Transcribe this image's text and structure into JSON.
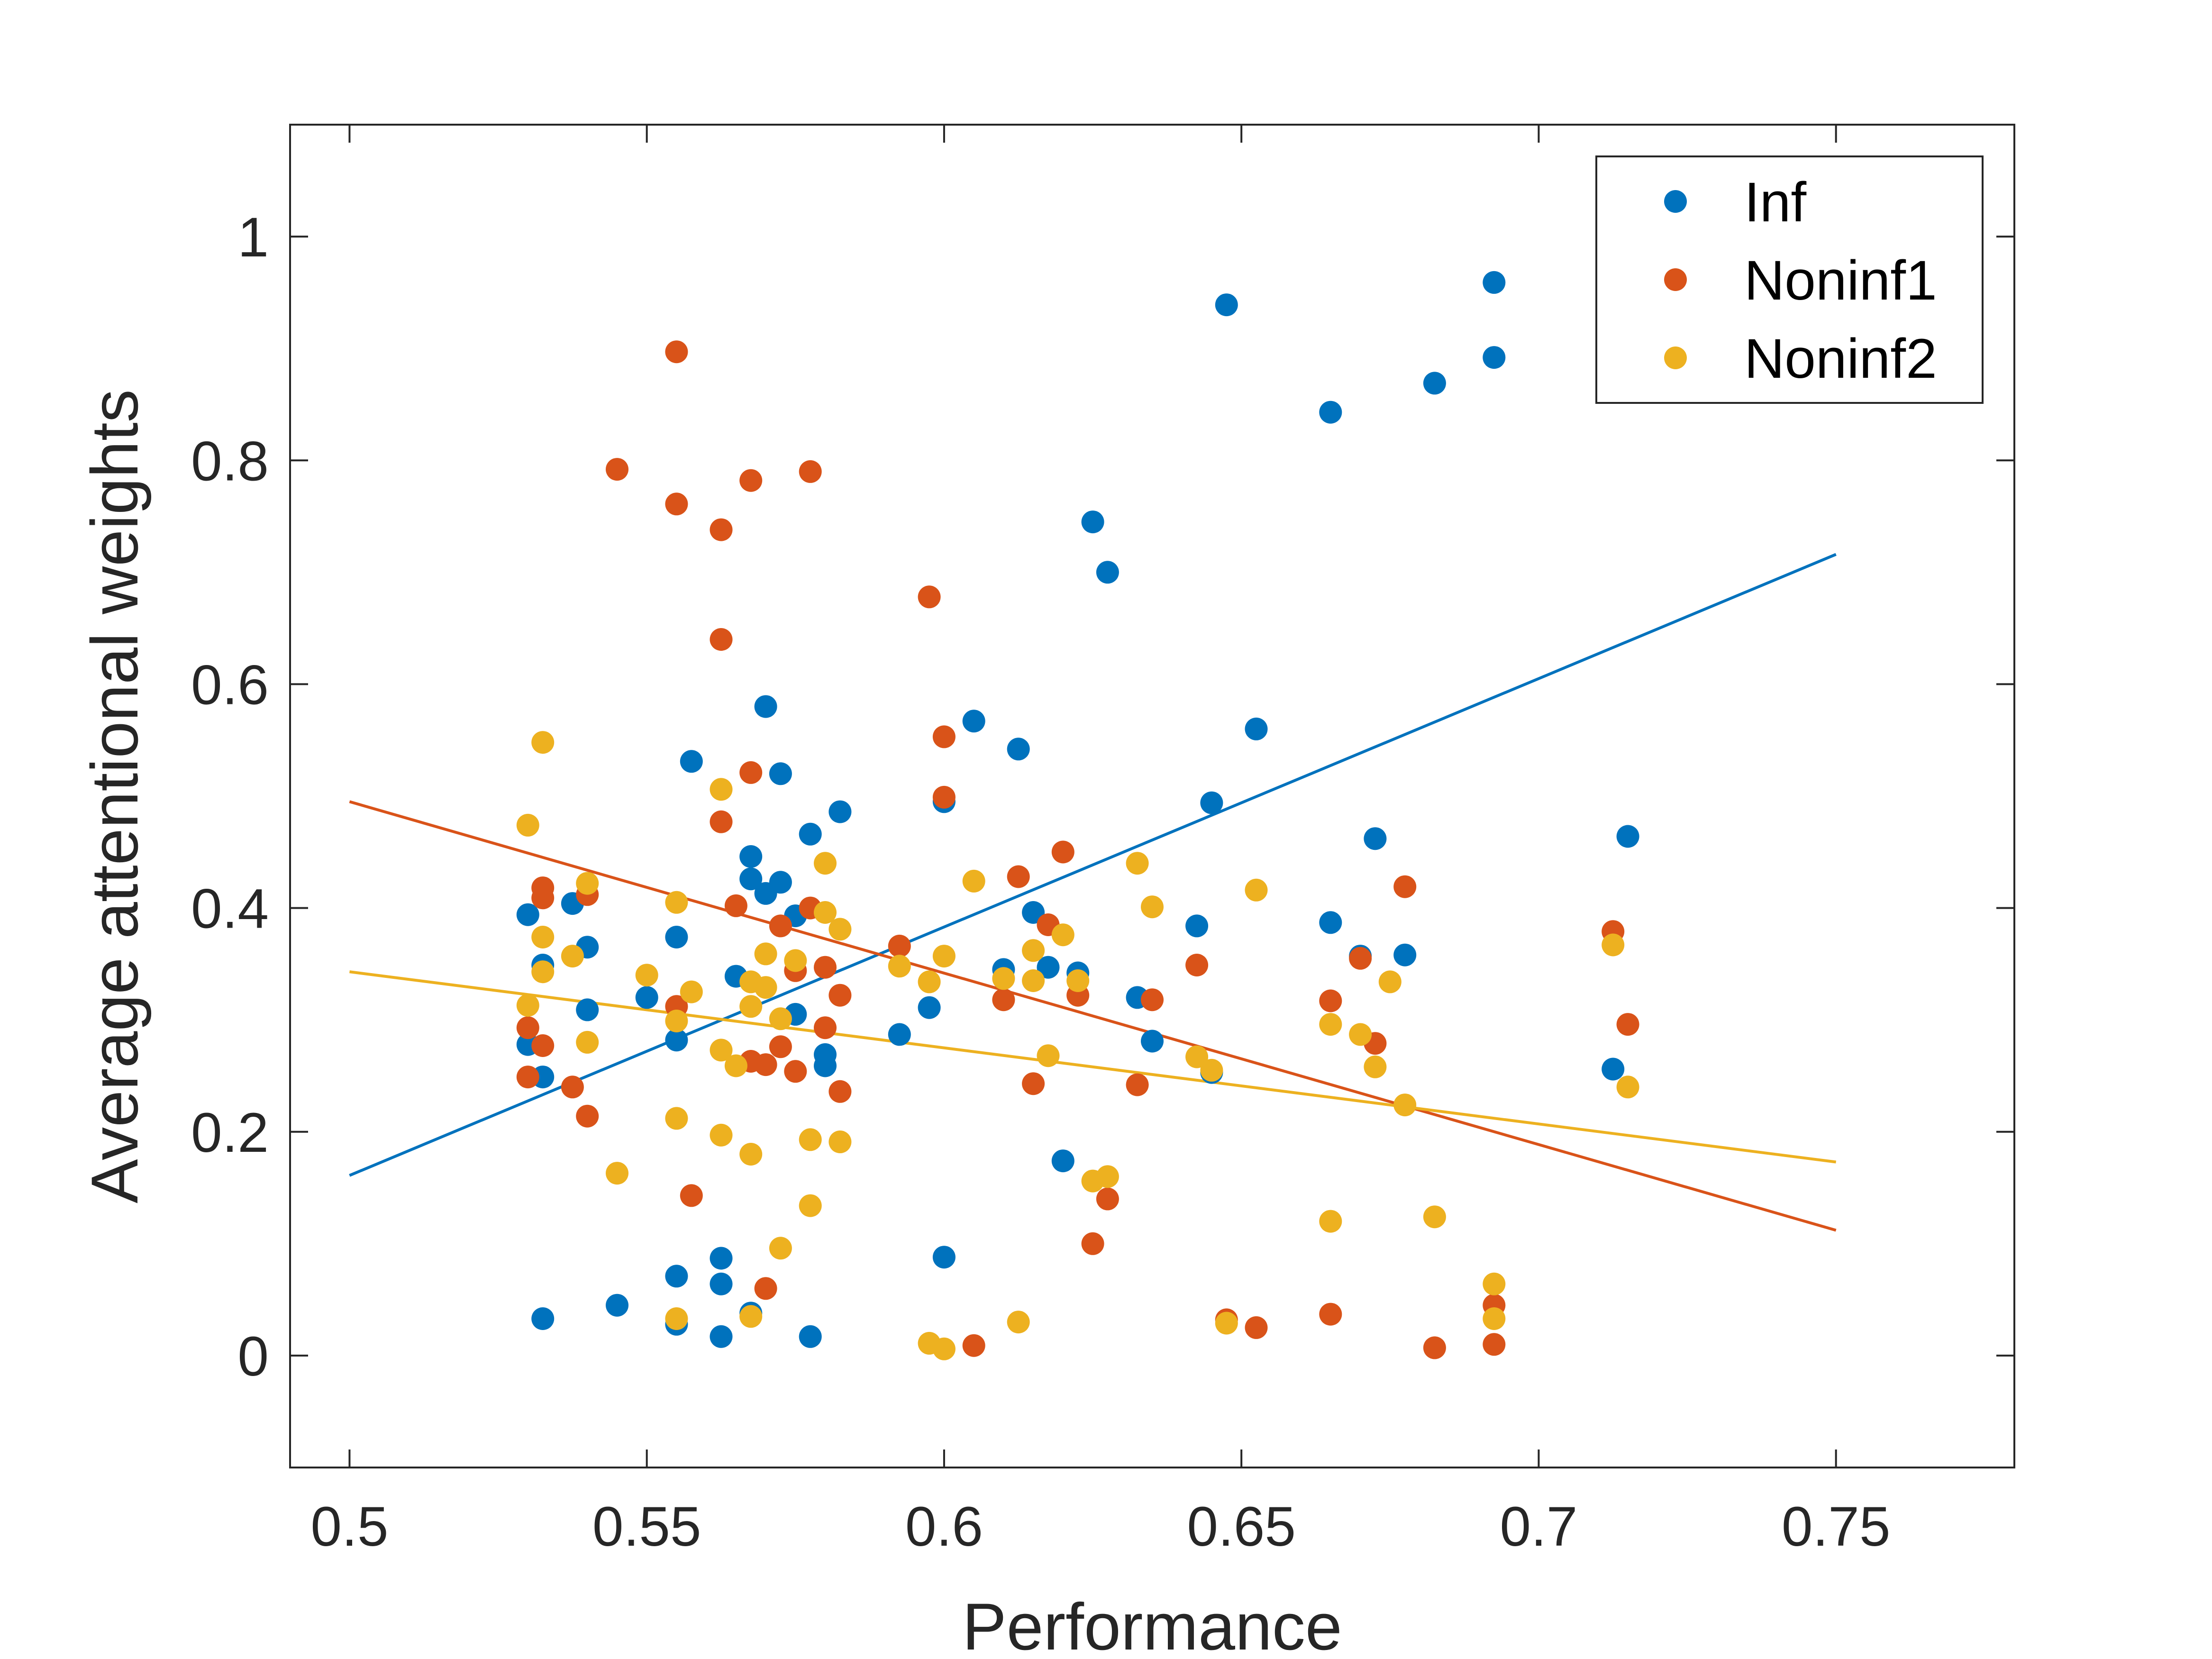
{
  "chart_data": {
    "type": "scatter",
    "xlabel": "Performance",
    "ylabel": "Average attentional weights",
    "xlim": [
      0.49,
      0.78
    ],
    "ylim": [
      -0.1,
      1.1
    ],
    "xticks": [
      "0.5",
      "0.55",
      "0.6",
      "0.65",
      "0.7",
      "0.75"
    ],
    "yticks": [
      "0",
      "0.2",
      "0.4",
      "0.6",
      "0.8",
      "1"
    ],
    "xtick_values": [
      0.5,
      0.55,
      0.6,
      0.65,
      0.7,
      0.75
    ],
    "ytick_values": [
      0,
      0.2,
      0.4,
      0.6,
      0.8,
      1
    ],
    "grid": false,
    "legend_position": "top-right",
    "series": [
      {
        "name": "Inf",
        "color": "#0072BD",
        "points": [
          [
            0.53,
            0.394
          ],
          [
            0.53,
            0.278
          ],
          [
            0.5325,
            0.349
          ],
          [
            0.5325,
            0.249
          ],
          [
            0.5325,
            0.033
          ],
          [
            0.5375,
            0.404
          ],
          [
            0.54,
            0.365
          ],
          [
            0.54,
            0.309
          ],
          [
            0.545,
            0.045
          ],
          [
            0.55,
            0.32
          ],
          [
            0.555,
            0.374
          ],
          [
            0.555,
            0.282
          ],
          [
            0.555,
            0.071
          ],
          [
            0.555,
            0.028
          ],
          [
            0.5575,
            0.531
          ],
          [
            0.5625,
            0.087
          ],
          [
            0.5625,
            0.064
          ],
          [
            0.5625,
            0.017
          ],
          [
            0.565,
            0.339
          ],
          [
            0.5675,
            0.446
          ],
          [
            0.5675,
            0.426
          ],
          [
            0.5675,
            0.038
          ],
          [
            0.57,
            0.58
          ],
          [
            0.57,
            0.413
          ],
          [
            0.5725,
            0.52
          ],
          [
            0.5725,
            0.423
          ],
          [
            0.575,
            0.393
          ],
          [
            0.575,
            0.305
          ],
          [
            0.5775,
            0.466
          ],
          [
            0.5775,
            0.017
          ],
          [
            0.58,
            0.269
          ],
          [
            0.58,
            0.259
          ],
          [
            0.5825,
            0.486
          ],
          [
            0.5925,
            0.287
          ],
          [
            0.5975,
            0.311
          ],
          [
            0.6,
            0.495
          ],
          [
            0.6,
            0.088
          ],
          [
            0.605,
            0.567
          ],
          [
            0.61,
            0.345
          ],
          [
            0.6125,
            0.542
          ],
          [
            0.615,
            0.396
          ],
          [
            0.6175,
            0.347
          ],
          [
            0.62,
            0.174
          ],
          [
            0.6225,
            0.342
          ],
          [
            0.625,
            0.745
          ],
          [
            0.6275,
            0.7
          ],
          [
            0.6325,
            0.32
          ],
          [
            0.635,
            0.281
          ],
          [
            0.6425,
            0.384
          ],
          [
            0.645,
            0.494
          ],
          [
            0.645,
            0.253
          ],
          [
            0.6475,
            0.939
          ],
          [
            0.6525,
            0.56
          ],
          [
            0.665,
            0.843
          ],
          [
            0.665,
            0.387
          ],
          [
            0.67,
            0.357
          ],
          [
            0.6725,
            0.462
          ],
          [
            0.6775,
            0.358
          ],
          [
            0.6825,
            0.869
          ],
          [
            0.6925,
            0.959
          ],
          [
            0.6925,
            0.892
          ],
          [
            0.7125,
            0.256
          ],
          [
            0.715,
            0.464
          ]
        ],
        "fit": {
          "x": [
            0.5,
            0.75
          ],
          "y": [
            0.161,
            0.716
          ]
        }
      },
      {
        "name": "Noninf1",
        "color": "#D95319",
        "points": [
          [
            0.53,
            0.293
          ],
          [
            0.53,
            0.249
          ],
          [
            0.5325,
            0.418
          ],
          [
            0.5325,
            0.409
          ],
          [
            0.5325,
            0.277
          ],
          [
            0.5375,
            0.24
          ],
          [
            0.54,
            0.412
          ],
          [
            0.54,
            0.214
          ],
          [
            0.545,
            0.792
          ],
          [
            0.555,
            0.897
          ],
          [
            0.555,
            0.761
          ],
          [
            0.555,
            0.312
          ],
          [
            0.5575,
            0.143
          ],
          [
            0.5625,
            0.738
          ],
          [
            0.5625,
            0.64
          ],
          [
            0.5625,
            0.477
          ],
          [
            0.565,
            0.402
          ],
          [
            0.5675,
            0.782
          ],
          [
            0.5675,
            0.521
          ],
          [
            0.5675,
            0.263
          ],
          [
            0.57,
            0.26
          ],
          [
            0.57,
            0.06
          ],
          [
            0.5725,
            0.384
          ],
          [
            0.5725,
            0.276
          ],
          [
            0.575,
            0.344
          ],
          [
            0.575,
            0.254
          ],
          [
            0.5775,
            0.79
          ],
          [
            0.5775,
            0.4
          ],
          [
            0.58,
            0.347
          ],
          [
            0.58,
            0.293
          ],
          [
            0.5825,
            0.322
          ],
          [
            0.5825,
            0.236
          ],
          [
            0.5925,
            0.366
          ],
          [
            0.5975,
            0.678
          ],
          [
            0.6,
            0.553
          ],
          [
            0.6,
            0.499
          ],
          [
            0.605,
            0.009
          ],
          [
            0.61,
            0.318
          ],
          [
            0.6125,
            0.428
          ],
          [
            0.615,
            0.243
          ],
          [
            0.6175,
            0.385
          ],
          [
            0.62,
            0.45
          ],
          [
            0.6225,
            0.322
          ],
          [
            0.625,
            0.1
          ],
          [
            0.6275,
            0.14
          ],
          [
            0.6325,
            0.242
          ],
          [
            0.635,
            0.318
          ],
          [
            0.6425,
            0.349
          ],
          [
            0.6475,
            0.032
          ],
          [
            0.6525,
            0.025
          ],
          [
            0.665,
            0.317
          ],
          [
            0.665,
            0.037
          ],
          [
            0.67,
            0.355
          ],
          [
            0.6725,
            0.279
          ],
          [
            0.6775,
            0.419
          ],
          [
            0.6825,
            0.007
          ],
          [
            0.6925,
            0.045
          ],
          [
            0.6925,
            0.01
          ],
          [
            0.7125,
            0.379
          ],
          [
            0.715,
            0.296
          ]
        ],
        "fit": {
          "x": [
            0.5,
            0.75
          ],
          "y": [
            0.495,
            0.112
          ]
        }
      },
      {
        "name": "Noninf2",
        "color": "#EDB120",
        "points": [
          [
            0.53,
            0.474
          ],
          [
            0.53,
            0.313
          ],
          [
            0.5325,
            0.548
          ],
          [
            0.5325,
            0.374
          ],
          [
            0.5325,
            0.343
          ],
          [
            0.5375,
            0.357
          ],
          [
            0.54,
            0.422
          ],
          [
            0.54,
            0.28
          ],
          [
            0.545,
            0.163
          ],
          [
            0.55,
            0.34
          ],
          [
            0.555,
            0.405
          ],
          [
            0.555,
            0.299
          ],
          [
            0.555,
            0.212
          ],
          [
            0.555,
            0.033
          ],
          [
            0.5575,
            0.325
          ],
          [
            0.5625,
            0.506
          ],
          [
            0.5625,
            0.273
          ],
          [
            0.5625,
            0.197
          ],
          [
            0.565,
            0.259
          ],
          [
            0.5675,
            0.334
          ],
          [
            0.5675,
            0.312
          ],
          [
            0.5675,
            0.18
          ],
          [
            0.5675,
            0.035
          ],
          [
            0.57,
            0.359
          ],
          [
            0.57,
            0.329
          ],
          [
            0.5725,
            0.301
          ],
          [
            0.5725,
            0.096
          ],
          [
            0.575,
            0.353
          ],
          [
            0.5775,
            0.193
          ],
          [
            0.5775,
            0.134
          ],
          [
            0.58,
            0.44
          ],
          [
            0.58,
            0.396
          ],
          [
            0.5825,
            0.381
          ],
          [
            0.5825,
            0.191
          ],
          [
            0.5925,
            0.348
          ],
          [
            0.5975,
            0.334
          ],
          [
            0.5975,
            0.011
          ],
          [
            0.6,
            0.357
          ],
          [
            0.6,
            0.006
          ],
          [
            0.605,
            0.424
          ],
          [
            0.61,
            0.337
          ],
          [
            0.6125,
            0.03
          ],
          [
            0.615,
            0.362
          ],
          [
            0.615,
            0.335
          ],
          [
            0.6175,
            0.268
          ],
          [
            0.62,
            0.376
          ],
          [
            0.6225,
            0.335
          ],
          [
            0.625,
            0.156
          ],
          [
            0.6275,
            0.16
          ],
          [
            0.6325,
            0.44
          ],
          [
            0.635,
            0.401
          ],
          [
            0.6425,
            0.267
          ],
          [
            0.645,
            0.255
          ],
          [
            0.6475,
            0.029
          ],
          [
            0.6525,
            0.416
          ],
          [
            0.665,
            0.296
          ],
          [
            0.665,
            0.12
          ],
          [
            0.67,
            0.287
          ],
          [
            0.6725,
            0.258
          ],
          [
            0.675,
            0.334
          ],
          [
            0.6775,
            0.224
          ],
          [
            0.6825,
            0.124
          ],
          [
            0.6925,
            0.064
          ],
          [
            0.6925,
            0.033
          ],
          [
            0.7125,
            0.367
          ],
          [
            0.715,
            0.24
          ]
        ],
        "fit": {
          "x": [
            0.5,
            0.75
          ],
          "y": [
            0.343,
            0.173
          ]
        }
      }
    ]
  }
}
